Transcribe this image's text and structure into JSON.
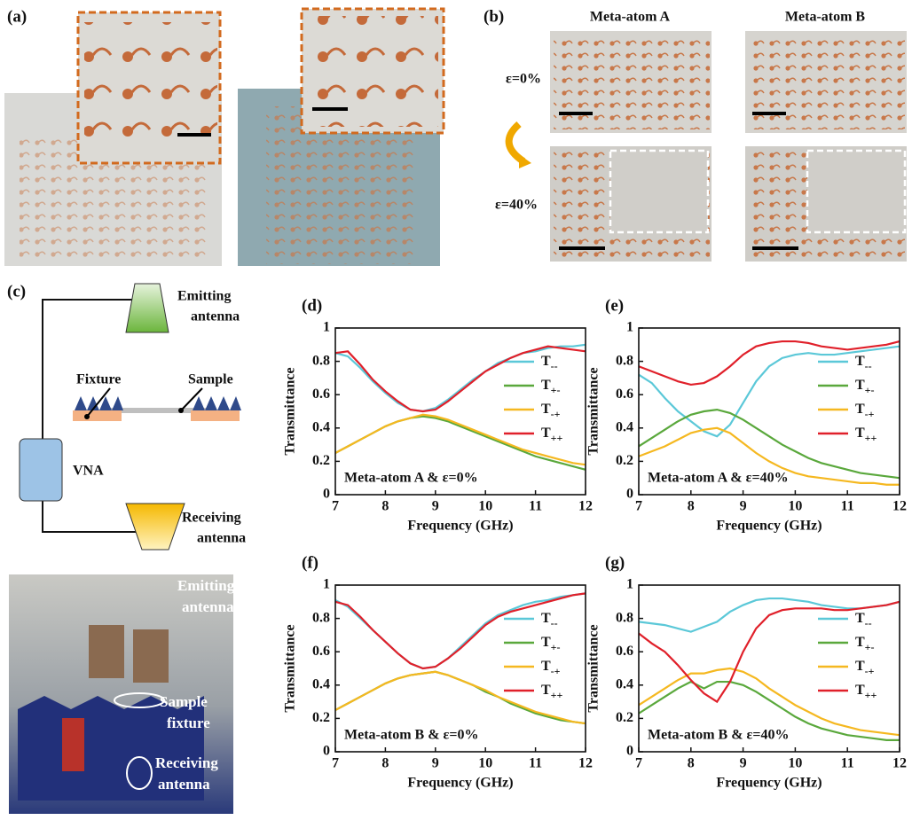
{
  "panels": {
    "a": "(a)",
    "b": "(b)",
    "c": "(c)"
  },
  "meta_atom_headers": [
    "Meta-atom A",
    "Meta-atom B"
  ],
  "strain_labels": [
    "ε=0%",
    "ε=40%"
  ],
  "schematic": {
    "emitting_antenna": [
      "Emitting",
      "antenna"
    ],
    "fixture": "Fixture",
    "sample": "Sample",
    "vna": "VNA",
    "receiving_antenna": [
      "Receiving",
      "antenna"
    ]
  },
  "photo_labels": {
    "emitting_antenna": [
      "Emitting",
      "antenna"
    ],
    "sample_fixture": [
      "Sample",
      "fixture"
    ],
    "receiving_antenna": [
      "Receiving",
      "antenna"
    ]
  },
  "chart_data": [
    {
      "type": "line",
      "panel_label": "(d)",
      "annotation": "Meta-atom A & ε=0%",
      "x_label": "Frequency (GHz)",
      "y_label": "Transmittance",
      "x": [
        7,
        7.25,
        7.5,
        7.75,
        8,
        8.25,
        8.5,
        8.75,
        9,
        9.25,
        9.5,
        9.75,
        10,
        10.25,
        10.5,
        10.75,
        11,
        11.25,
        11.5,
        11.75,
        12
      ],
      "xlim": [
        7,
        12
      ],
      "xticks": [
        7,
        8,
        9,
        10,
        11,
        12
      ],
      "ylim": [
        0,
        1
      ],
      "yticks": [
        0,
        0.2,
        0.4,
        0.6,
        0.8,
        1
      ],
      "series": [
        {
          "name": "T--",
          "color": "#5bc8d8",
          "values": [
            0.85,
            0.83,
            0.76,
            0.68,
            0.61,
            0.55,
            0.51,
            0.5,
            0.52,
            0.57,
            0.63,
            0.69,
            0.74,
            0.79,
            0.82,
            0.85,
            0.86,
            0.88,
            0.89,
            0.89,
            0.9
          ]
        },
        {
          "name": "T+-",
          "color": "#5aa83c",
          "values": [
            0.25,
            0.29,
            0.33,
            0.37,
            0.41,
            0.44,
            0.46,
            0.47,
            0.46,
            0.44,
            0.41,
            0.38,
            0.35,
            0.32,
            0.29,
            0.26,
            0.23,
            0.21,
            0.19,
            0.17,
            0.15
          ]
        },
        {
          "name": "T-+",
          "color": "#f5b820",
          "values": [
            0.25,
            0.29,
            0.33,
            0.37,
            0.41,
            0.44,
            0.46,
            0.48,
            0.47,
            0.45,
            0.42,
            0.39,
            0.36,
            0.33,
            0.3,
            0.27,
            0.25,
            0.23,
            0.21,
            0.19,
            0.18
          ]
        },
        {
          "name": "T++",
          "color": "#e0202a",
          "values": [
            0.85,
            0.86,
            0.78,
            0.69,
            0.62,
            0.56,
            0.51,
            0.5,
            0.51,
            0.56,
            0.62,
            0.68,
            0.74,
            0.78,
            0.82,
            0.85,
            0.87,
            0.89,
            0.88,
            0.87,
            0.86
          ]
        }
      ]
    },
    {
      "type": "line",
      "panel_label": "(e)",
      "annotation": "Meta-atom A & ε=40%",
      "x_label": "Frequency (GHz)",
      "y_label": "Transmittance",
      "x": [
        7,
        7.25,
        7.5,
        7.75,
        8,
        8.25,
        8.5,
        8.75,
        9,
        9.25,
        9.5,
        9.75,
        10,
        10.25,
        10.5,
        10.75,
        11,
        11.25,
        11.5,
        11.75,
        12
      ],
      "xlim": [
        7,
        12
      ],
      "xticks": [
        7,
        8,
        9,
        10,
        11,
        12
      ],
      "ylim": [
        0,
        1
      ],
      "yticks": [
        0,
        0.2,
        0.4,
        0.6,
        0.8,
        1
      ],
      "series": [
        {
          "name": "T--",
          "color": "#5bc8d8",
          "values": [
            0.72,
            0.67,
            0.58,
            0.5,
            0.44,
            0.38,
            0.35,
            0.42,
            0.55,
            0.68,
            0.77,
            0.82,
            0.84,
            0.85,
            0.84,
            0.84,
            0.85,
            0.86,
            0.87,
            0.88,
            0.89
          ]
        },
        {
          "name": "T+-",
          "color": "#5aa83c",
          "values": [
            0.29,
            0.34,
            0.39,
            0.44,
            0.48,
            0.5,
            0.51,
            0.49,
            0.45,
            0.4,
            0.35,
            0.3,
            0.26,
            0.22,
            0.19,
            0.17,
            0.15,
            0.13,
            0.12,
            0.11,
            0.1
          ]
        },
        {
          "name": "T-+",
          "color": "#f5b820",
          "values": [
            0.23,
            0.26,
            0.29,
            0.33,
            0.37,
            0.39,
            0.4,
            0.37,
            0.31,
            0.25,
            0.2,
            0.16,
            0.13,
            0.11,
            0.1,
            0.09,
            0.08,
            0.07,
            0.07,
            0.06,
            0.06
          ]
        },
        {
          "name": "T++",
          "color": "#e0202a",
          "values": [
            0.77,
            0.74,
            0.71,
            0.68,
            0.66,
            0.67,
            0.71,
            0.77,
            0.84,
            0.89,
            0.91,
            0.92,
            0.92,
            0.91,
            0.89,
            0.88,
            0.87,
            0.88,
            0.89,
            0.9,
            0.92
          ]
        }
      ]
    },
    {
      "type": "line",
      "panel_label": "(f)",
      "annotation": "Meta-atom B & ε=0%",
      "x_label": "Frequency (GHz)",
      "y_label": "Transmittance",
      "x": [
        7,
        7.25,
        7.5,
        7.75,
        8,
        8.25,
        8.5,
        8.75,
        9,
        9.25,
        9.5,
        9.75,
        10,
        10.25,
        10.5,
        10.75,
        11,
        11.25,
        11.5,
        11.75,
        12
      ],
      "xlim": [
        7,
        12
      ],
      "xticks": [
        7,
        8,
        9,
        10,
        11,
        12
      ],
      "ylim": [
        0,
        1
      ],
      "yticks": [
        0,
        0.2,
        0.4,
        0.6,
        0.8,
        1
      ],
      "series": [
        {
          "name": "T--",
          "color": "#5bc8d8",
          "values": [
            0.91,
            0.87,
            0.8,
            0.73,
            0.66,
            0.59,
            0.53,
            0.5,
            0.51,
            0.56,
            0.63,
            0.7,
            0.77,
            0.82,
            0.85,
            0.88,
            0.9,
            0.91,
            0.93,
            0.94,
            0.95
          ]
        },
        {
          "name": "T+-",
          "color": "#5aa83c",
          "values": [
            0.25,
            0.29,
            0.33,
            0.37,
            0.41,
            0.44,
            0.46,
            0.47,
            0.48,
            0.46,
            0.43,
            0.4,
            0.36,
            0.33,
            0.29,
            0.26,
            0.23,
            0.21,
            0.19,
            0.18,
            0.17
          ]
        },
        {
          "name": "T-+",
          "color": "#f5b820",
          "values": [
            0.25,
            0.29,
            0.33,
            0.37,
            0.41,
            0.44,
            0.46,
            0.47,
            0.48,
            0.46,
            0.43,
            0.4,
            0.37,
            0.33,
            0.3,
            0.27,
            0.24,
            0.22,
            0.2,
            0.18,
            0.17
          ]
        },
        {
          "name": "T++",
          "color": "#e0202a",
          "values": [
            0.9,
            0.88,
            0.81,
            0.73,
            0.66,
            0.59,
            0.53,
            0.5,
            0.51,
            0.56,
            0.62,
            0.69,
            0.76,
            0.81,
            0.84,
            0.86,
            0.88,
            0.9,
            0.92,
            0.94,
            0.95
          ]
        }
      ]
    },
    {
      "type": "line",
      "panel_label": "(g)",
      "annotation": "Meta-atom B & ε=40%",
      "x_label": "Frequency (GHz)",
      "y_label": "Transmittance",
      "x": [
        7,
        7.25,
        7.5,
        7.75,
        8,
        8.25,
        8.5,
        8.75,
        9,
        9.25,
        9.5,
        9.75,
        10,
        10.25,
        10.5,
        10.75,
        11,
        11.25,
        11.5,
        11.75,
        12
      ],
      "xlim": [
        7,
        12
      ],
      "xticks": [
        7,
        8,
        9,
        10,
        11,
        12
      ],
      "ylim": [
        0,
        1
      ],
      "yticks": [
        0,
        0.2,
        0.4,
        0.6,
        0.8,
        1
      ],
      "series": [
        {
          "name": "T--",
          "color": "#5bc8d8",
          "values": [
            0.78,
            0.77,
            0.76,
            0.74,
            0.72,
            0.75,
            0.78,
            0.84,
            0.88,
            0.91,
            0.92,
            0.92,
            0.91,
            0.9,
            0.88,
            0.87,
            0.86,
            0.86,
            0.87,
            0.88,
            0.9
          ]
        },
        {
          "name": "T+-",
          "color": "#5aa83c",
          "values": [
            0.23,
            0.28,
            0.33,
            0.38,
            0.42,
            0.38,
            0.42,
            0.42,
            0.4,
            0.36,
            0.31,
            0.26,
            0.21,
            0.17,
            0.14,
            0.12,
            0.1,
            0.09,
            0.08,
            0.07,
            0.07
          ]
        },
        {
          "name": "T-+",
          "color": "#f5b820",
          "values": [
            0.28,
            0.33,
            0.38,
            0.43,
            0.47,
            0.47,
            0.49,
            0.5,
            0.48,
            0.44,
            0.38,
            0.33,
            0.28,
            0.24,
            0.2,
            0.17,
            0.15,
            0.13,
            0.12,
            0.11,
            0.1
          ]
        },
        {
          "name": "T++",
          "color": "#e0202a",
          "values": [
            0.71,
            0.65,
            0.6,
            0.52,
            0.43,
            0.35,
            0.3,
            0.42,
            0.6,
            0.74,
            0.82,
            0.85,
            0.86,
            0.86,
            0.86,
            0.85,
            0.85,
            0.86,
            0.87,
            0.88,
            0.9
          ]
        }
      ]
    }
  ]
}
